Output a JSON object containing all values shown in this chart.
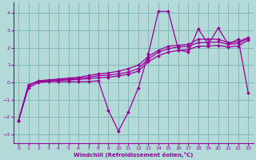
{
  "background_color": "#b3d9d9",
  "grid_color": "#80b8b8",
  "line_color": "#990099",
  "xlim": [
    -0.5,
    23.5
  ],
  "ylim": [
    -3.5,
    4.6
  ],
  "yticks": [
    -3,
    -2,
    -1,
    0,
    1,
    2,
    3,
    4
  ],
  "xticks": [
    0,
    1,
    2,
    3,
    4,
    5,
    6,
    7,
    8,
    9,
    10,
    11,
    12,
    13,
    14,
    15,
    16,
    17,
    18,
    19,
    20,
    21,
    22,
    23
  ],
  "xlabel": "Windchill (Refroidissement éolien,°C)",
  "series": [
    [
      0,
      -2.2,
      1,
      -0.3,
      2,
      0.0,
      3,
      0.05,
      4,
      0.05,
      5,
      0.05,
      6,
      0.05,
      7,
      0.05,
      8,
      0.1,
      9,
      -1.6,
      10,
      -2.8,
      11,
      -1.7,
      12,
      -0.3,
      13,
      1.65,
      14,
      4.1,
      15,
      4.1,
      16,
      1.9,
      17,
      1.75,
      18,
      3.1,
      19,
      2.2,
      20,
      3.15,
      21,
      2.2,
      22,
      2.5,
      23,
      -0.6
    ],
    [
      0,
      -2.2,
      1,
      -0.15,
      2,
      0.1,
      3,
      0.15,
      4,
      0.2,
      5,
      0.25,
      6,
      0.3,
      7,
      0.4,
      8,
      0.5,
      9,
      0.55,
      10,
      0.65,
      11,
      0.8,
      12,
      1.0,
      13,
      1.5,
      14,
      1.85,
      15,
      2.1,
      16,
      2.15,
      17,
      2.2,
      18,
      2.5,
      19,
      2.5,
      20,
      2.5,
      21,
      2.3,
      22,
      2.35,
      23,
      2.6
    ],
    [
      0,
      -2.2,
      1,
      -0.15,
      2,
      0.05,
      3,
      0.1,
      4,
      0.15,
      5,
      0.2,
      6,
      0.25,
      7,
      0.3,
      8,
      0.4,
      9,
      0.42,
      10,
      0.5,
      11,
      0.6,
      12,
      0.8,
      13,
      1.35,
      14,
      1.75,
      15,
      1.95,
      16,
      2.05,
      17,
      2.1,
      18,
      2.3,
      19,
      2.3,
      20,
      2.35,
      21,
      2.2,
      22,
      2.25,
      23,
      2.55
    ],
    [
      0,
      -2.2,
      1,
      -0.15,
      2,
      0.05,
      3,
      0.1,
      4,
      0.12,
      5,
      0.15,
      6,
      0.18,
      7,
      0.22,
      8,
      0.28,
      9,
      0.3,
      10,
      0.38,
      11,
      0.48,
      12,
      0.65,
      13,
      1.2,
      14,
      1.55,
      15,
      1.75,
      16,
      1.85,
      17,
      1.9,
      18,
      2.1,
      19,
      2.1,
      20,
      2.15,
      21,
      2.05,
      22,
      2.1,
      23,
      2.45
    ]
  ],
  "marker": "D",
  "markersize": 2.0,
  "linewidth": 0.9
}
